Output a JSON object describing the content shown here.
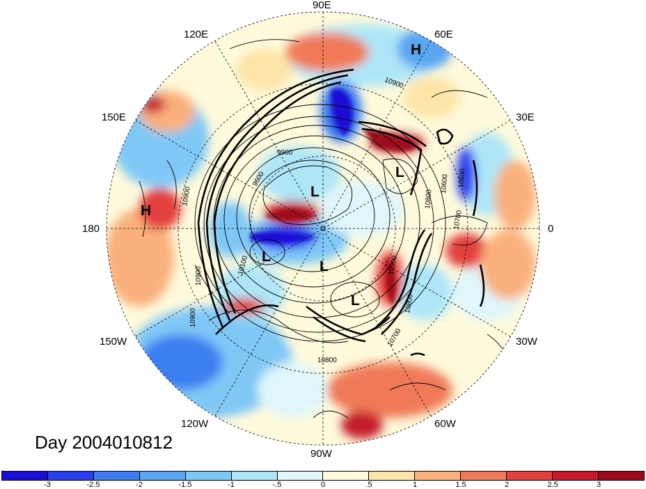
{
  "title": "Day 2004010812",
  "lon_labels": {
    "e90": "90E",
    "e120": "120E",
    "e60": "60E",
    "e150": "150E",
    "e30": "30E",
    "w180": "180",
    "zero": "0",
    "w150": "150W",
    "w30": "30W",
    "w120": "120W",
    "w60": "60W",
    "w90": "90W"
  },
  "pressure_centers": [
    "H",
    "H",
    "L",
    "L",
    "L",
    "L",
    "L"
  ],
  "contour_labels": [
    "10900",
    "9900",
    "9600",
    "10900",
    "10600",
    "10700",
    "10800",
    "10800",
    "10900",
    "10700",
    "10800",
    "10900",
    "10900",
    "10600",
    "10100"
  ],
  "colorbar": {
    "ticks": [
      "-3",
      "-2.5",
      "-2",
      "-1.5",
      "-1",
      "-.5",
      "0",
      ".5",
      "1",
      "1.5",
      "2",
      "2.5",
      "3"
    ],
    "colors": [
      "#1a0fd6",
      "#2a3ff0",
      "#3d7ff0",
      "#5aa6f2",
      "#7fc8f6",
      "#aee6f8",
      "#dff6fb",
      "#fefadb",
      "#fde4a8",
      "#f9b07c",
      "#f07a58",
      "#e2413e",
      "#c41a2a",
      "#9e0a1e"
    ]
  }
}
